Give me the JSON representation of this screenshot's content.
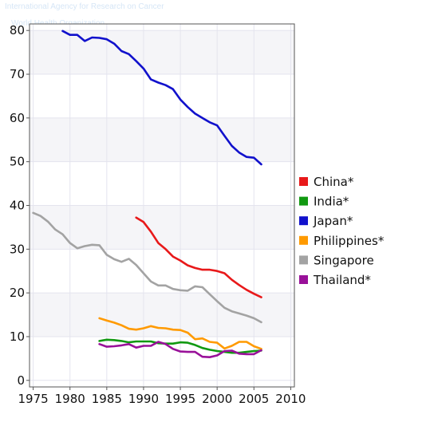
{
  "watermark": {
    "agency": "International Agency for Research on Cancer",
    "org": "World Health Organization"
  },
  "chart_data": {
    "type": "line",
    "title": "",
    "xlabel": "",
    "ylabel": "",
    "xlim": [
      1974.5,
      2010.5
    ],
    "ylim": [
      -1.5,
      81.5
    ],
    "xticks": [
      1975,
      1980,
      1985,
      1990,
      1995,
      2000,
      2005,
      2010
    ],
    "yticks": [
      0,
      10,
      20,
      30,
      40,
      50,
      60,
      70,
      80
    ],
    "grid": true,
    "legend_position": "right",
    "series": [
      {
        "name": "China*",
        "color": "#e8191a",
        "x": [
          1989,
          1990,
          1991,
          1992,
          1993,
          1994,
          1995,
          1996,
          1997,
          1998,
          1999,
          2000,
          2001,
          2002,
          2003,
          2004,
          2005,
          2006
        ],
        "y": [
          37.2,
          36.2,
          34.0,
          31.4,
          30.0,
          28.3,
          27.4,
          26.3,
          25.7,
          25.3,
          25.3,
          25.0,
          24.5,
          23.0,
          21.8,
          20.7,
          19.8,
          19.0
        ]
      },
      {
        "name": "India*",
        "color": "#119911",
        "x": [
          1984,
          1985,
          1986,
          1987,
          1988,
          1989,
          1990,
          1991,
          1992,
          1993,
          1994,
          1995,
          1996,
          1997,
          1998,
          1999,
          2000,
          2001,
          2002,
          2003,
          2004,
          2005,
          2006
        ],
        "y": [
          9.0,
          9.3,
          9.2,
          9.0,
          8.7,
          8.9,
          8.9,
          8.9,
          8.5,
          8.4,
          8.4,
          8.7,
          8.6,
          8.1,
          7.4,
          7.0,
          6.7,
          6.5,
          6.3,
          6.3,
          6.5,
          6.7,
          6.8
        ]
      },
      {
        "name": "Japan*",
        "color": "#1111cc",
        "x": [
          1979,
          1980,
          1981,
          1982,
          1983,
          1984,
          1985,
          1986,
          1987,
          1988,
          1989,
          1990,
          1991,
          1992,
          1993,
          1994,
          1995,
          1996,
          1997,
          1998,
          1999,
          2000,
          2001,
          2002,
          2003,
          2004,
          2005,
          2006
        ],
        "y": [
          79.9,
          79.0,
          79.0,
          77.6,
          78.4,
          78.3,
          78.0,
          77.0,
          75.3,
          74.6,
          73.0,
          71.3,
          68.8,
          68.1,
          67.5,
          66.6,
          64.2,
          62.5,
          61.0,
          60.0,
          59.0,
          58.3,
          55.9,
          53.6,
          52.1,
          51.1,
          50.9,
          49.4
        ]
      },
      {
        "name": "Philippines*",
        "color": "#ff9a00",
        "x": [
          1984,
          1985,
          1986,
          1987,
          1988,
          1989,
          1990,
          1991,
          1992,
          1993,
          1994,
          1995,
          1996,
          1997,
          1998,
          1999,
          2000,
          2001,
          2002,
          2003,
          2004,
          2005,
          2006
        ],
        "y": [
          14.2,
          13.7,
          13.2,
          12.6,
          11.8,
          11.6,
          11.9,
          12.4,
          12.0,
          11.9,
          11.6,
          11.5,
          10.9,
          9.4,
          9.6,
          8.8,
          8.6,
          7.3,
          7.9,
          8.8,
          8.8,
          7.8,
          7.2
        ]
      },
      {
        "name": "Singapore",
        "color": "#a3a3a3",
        "x": [
          1975,
          1976,
          1977,
          1978,
          1979,
          1980,
          1981,
          1982,
          1983,
          1984,
          1985,
          1986,
          1987,
          1988,
          1989,
          1990,
          1991,
          1992,
          1993,
          1994,
          1995,
          1996,
          1997,
          1998,
          1999,
          2000,
          2001,
          2002,
          2003,
          2004,
          2005,
          2006
        ],
        "y": [
          38.3,
          37.6,
          36.3,
          34.5,
          33.4,
          31.4,
          30.2,
          30.7,
          31.0,
          30.9,
          28.7,
          27.7,
          27.1,
          27.8,
          26.4,
          24.5,
          22.6,
          21.7,
          21.7,
          20.9,
          20.6,
          20.5,
          21.5,
          21.3,
          19.7,
          18.1,
          16.6,
          15.8,
          15.3,
          14.8,
          14.2,
          13.3
        ]
      },
      {
        "name": "Thailand*",
        "color": "#991199",
        "x": [
          1984,
          1985,
          1986,
          1987,
          1988,
          1989,
          1990,
          1991,
          1992,
          1993,
          1994,
          1995,
          1996,
          1997,
          1998,
          1999,
          2000,
          2001,
          2002,
          2003,
          2004,
          2005,
          2006
        ],
        "y": [
          8.3,
          7.7,
          7.8,
          8.0,
          8.3,
          7.5,
          7.9,
          7.9,
          8.8,
          8.3,
          7.2,
          6.6,
          6.5,
          6.5,
          5.4,
          5.3,
          5.7,
          6.7,
          6.8,
          6.1,
          6.0,
          6.0,
          6.9
        ]
      }
    ]
  }
}
